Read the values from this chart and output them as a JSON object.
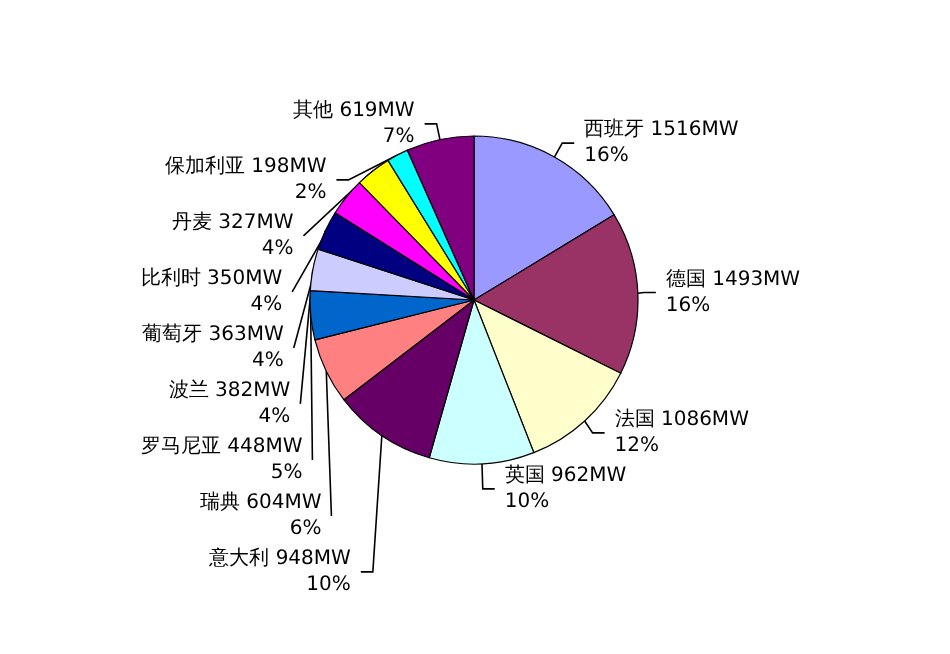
{
  "chart_data": {
    "type": "pie",
    "categories": [
      "西班牙",
      "德国",
      "法国",
      "英国",
      "意大利",
      "瑞典",
      "罗马尼亚",
      "波兰",
      "葡萄牙",
      "比利时",
      "丹麦",
      "保加利亚",
      "其他"
    ],
    "values": [
      1516,
      1493,
      1086,
      962,
      948,
      604,
      448,
      382,
      363,
      350,
      327,
      198,
      619
    ],
    "value_labels": [
      "1516MW\n16%",
      "1493MW\n16%",
      "1086MW\n12%",
      "962MW\n10%",
      "948MW\n10%",
      "604MW\n6%",
      "448MW\n5%",
      "382MW\n4%",
      "363MW\n4%",
      "350MW\n4%",
      "327MW\n4%",
      "198MW\n2%",
      "619MW\n7%"
    ],
    "colors": [
      "#9999ff",
      "#993366",
      "#ffffcc",
      "#ccffff",
      "#660066",
      "#ff8080",
      "#0066cc",
      "#ccccff",
      "#000080",
      "#ff00ff",
      "#ffff00",
      "#00ffff",
      "#800080"
    ],
    "legend": false
  }
}
